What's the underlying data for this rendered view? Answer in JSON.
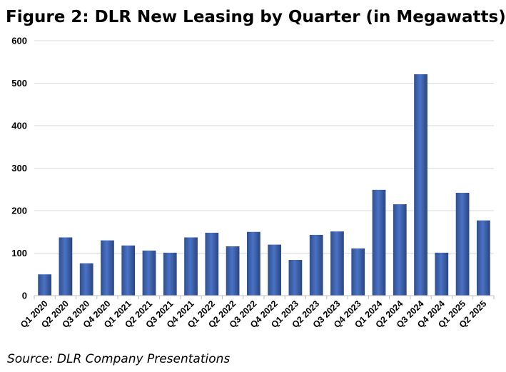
{
  "title": "Figure 2: DLR New Leasing by Quarter (in Megawatts)",
  "source": "Source: DLR Company Presentations",
  "chart_data": {
    "type": "bar",
    "title": "Figure 2: DLR New Leasing by Quarter (in Megawatts)",
    "xlabel": "",
    "ylabel": "",
    "ylim": [
      0,
      600
    ],
    "yticks": [
      0,
      100,
      200,
      300,
      400,
      500,
      600
    ],
    "grid": true,
    "legend": "none",
    "bar_color_top": "#2f4f8f",
    "bar_color_mid": "#4a72c4",
    "bar_color_bottom": "#2a4580",
    "categories": [
      "Q1 2020",
      "Q2 2020",
      "Q3 2020",
      "Q4 2020",
      "Q1 2021",
      "Q2 2021",
      "Q3 2021",
      "Q4 2021",
      "Q1 2022",
      "Q2 2022",
      "Q3 2022",
      "Q4 2022",
      "Q1 2023",
      "Q2 2023",
      "Q3 2023",
      "Q4 2023",
      "Q1 2024",
      "Q2 2024",
      "Q3 2024",
      "Q4 2024",
      "Q1 2025",
      "Q2 2025"
    ],
    "values": [
      50,
      137,
      76,
      130,
      118,
      106,
      101,
      137,
      148,
      116,
      150,
      120,
      84,
      143,
      151,
      111,
      249,
      215,
      521,
      101,
      242,
      177
    ]
  }
}
